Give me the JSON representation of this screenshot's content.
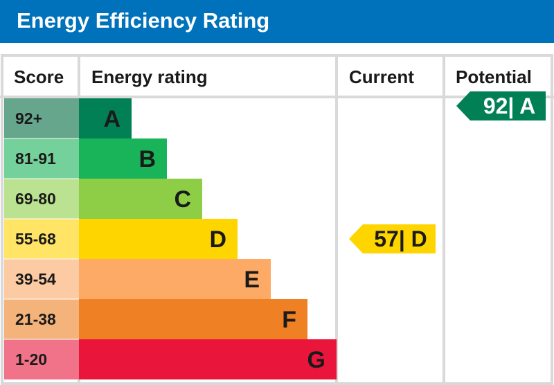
{
  "title": "Energy Efficiency Rating",
  "colors": {
    "header_bg": "#0072bc",
    "grid_line": "#d9d9d9",
    "text": "#1a1a1a"
  },
  "columns": {
    "score": "Score",
    "rating": "Energy rating",
    "current": "Current",
    "potential": "Potential"
  },
  "chart_data": {
    "type": "bar",
    "title": "Energy Efficiency Rating",
    "categories": [
      "A",
      "B",
      "C",
      "D",
      "E",
      "F",
      "G"
    ],
    "score_ranges": [
      "92+",
      "81-91",
      "69-80",
      "55-68",
      "39-54",
      "21-38",
      "1-20"
    ],
    "values": [
      1,
      2,
      3,
      4,
      5,
      6,
      7
    ],
    "bar_colors": [
      "#008054",
      "#19b459",
      "#8dce46",
      "#ffd500",
      "#fcaa65",
      "#ef8023",
      "#e9153b"
    ],
    "score_colors": [
      "#66a68d",
      "#75d19b",
      "#bbe290",
      "#ffe466",
      "#fdcba3",
      "#f4b37b",
      "#f17389"
    ],
    "letter_colors": [
      "#1a1a1a",
      "#1a1a1a",
      "#1a1a1a",
      "#1a1a1a",
      "#1a1a1a",
      "#1a1a1a",
      "#1a1a1a"
    ],
    "current": {
      "value": 57,
      "band": "D",
      "label": "57| D",
      "color": "#ffd500",
      "text_color": "#1a1a1a"
    },
    "potential": {
      "value": 92,
      "band": "A",
      "label": "92| A",
      "color": "#008054",
      "text_color": "#ffffff"
    }
  }
}
